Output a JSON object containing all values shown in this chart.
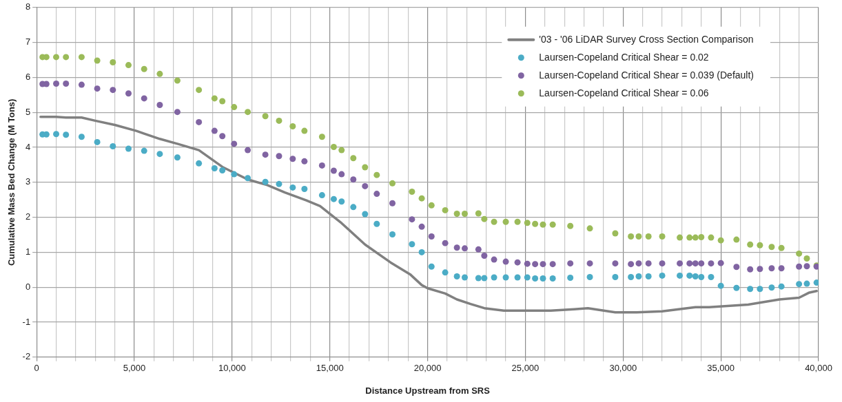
{
  "chart_data": {
    "type": "scatter",
    "xlabel": "Distance Upstream from SRS",
    "ylabel": "Cumulative Mass Bed Change (M Tons)",
    "x": [
      300,
      500,
      1000,
      1500,
      2300,
      3100,
      3900,
      4700,
      5500,
      6300,
      7200,
      8300,
      9100,
      9500,
      10100,
      10800,
      11700,
      12400,
      13100,
      13700,
      14600,
      15200,
      15600,
      16200,
      16800,
      17400,
      18200,
      19200,
      19700,
      20200,
      20900,
      21500,
      21900,
      22600,
      22900,
      23400,
      24000,
      24600,
      25100,
      25500,
      25900,
      26400,
      27300,
      28300,
      29600,
      30400,
      30800,
      31300,
      32000,
      32900,
      33400,
      33700,
      34000,
      34500,
      35000,
      35800,
      36500,
      37000,
      37600,
      38100,
      39000,
      39400,
      39900
    ],
    "series": [
      {
        "name": "'03 - '06 LiDAR Survey Cross Section Comparison",
        "type": "line",
        "marker": "none",
        "line_style": "solid",
        "color": "#808080",
        "x": [
          200,
          1000,
          1500,
          2300,
          3000,
          4000,
          5100,
          5500,
          6300,
          7200,
          8300,
          9500,
          10800,
          11800,
          12700,
          13800,
          14500,
          15600,
          16800,
          18100,
          19100,
          19700,
          20000,
          20900,
          21500,
          22200,
          22900,
          23900,
          25100,
          26300,
          27500,
          28200,
          29600,
          30700,
          32000,
          33700,
          34400,
          36400,
          38000,
          39000,
          39500,
          39900
        ],
        "values": [
          4.87,
          4.87,
          4.85,
          4.85,
          4.76,
          4.64,
          4.47,
          4.39,
          4.24,
          4.1,
          3.92,
          3.44,
          3.08,
          2.92,
          2.71,
          2.48,
          2.32,
          1.83,
          1.22,
          0.71,
          0.37,
          0.06,
          -0.03,
          -0.18,
          -0.35,
          -0.48,
          -0.6,
          -0.67,
          -0.67,
          -0.67,
          -0.63,
          -0.6,
          -0.72,
          -0.72,
          -0.69,
          -0.57,
          -0.57,
          -0.5,
          -0.35,
          -0.3,
          -0.16,
          -0.11
        ]
      },
      {
        "name": "Laursen-Copeland Critical Shear = 0.02",
        "type": "scatter",
        "marker": "circle",
        "color": "#4bacc6",
        "values": [
          4.37,
          4.37,
          4.38,
          4.36,
          4.3,
          4.15,
          4.03,
          3.96,
          3.9,
          3.81,
          3.71,
          3.54,
          3.4,
          3.34,
          3.23,
          3.12,
          3.01,
          2.95,
          2.85,
          2.81,
          2.63,
          2.52,
          2.45,
          2.29,
          2.09,
          1.81,
          1.51,
          1.23,
          1.0,
          0.59,
          0.42,
          0.31,
          0.28,
          0.26,
          0.26,
          0.28,
          0.28,
          0.28,
          0.28,
          0.25,
          0.25,
          0.25,
          0.27,
          0.29,
          0.29,
          0.29,
          0.31,
          0.31,
          0.33,
          0.33,
          0.33,
          0.31,
          0.29,
          0.29,
          0.04,
          -0.02,
          -0.05,
          -0.05,
          -0.01,
          0.02,
          0.09,
          0.1,
          0.13
        ]
      },
      {
        "name": "Laursen-Copeland Critical Shear = 0.039 (Default)",
        "type": "scatter",
        "marker": "circle",
        "color": "#8064a2",
        "values": [
          5.81,
          5.81,
          5.82,
          5.82,
          5.79,
          5.68,
          5.64,
          5.54,
          5.4,
          5.21,
          5.01,
          4.72,
          4.47,
          4.32,
          4.1,
          3.92,
          3.79,
          3.75,
          3.67,
          3.6,
          3.48,
          3.33,
          3.23,
          3.08,
          2.89,
          2.67,
          2.4,
          1.94,
          1.73,
          1.45,
          1.26,
          1.13,
          1.11,
          1.08,
          0.9,
          0.79,
          0.73,
          0.71,
          0.67,
          0.66,
          0.66,
          0.66,
          0.68,
          0.68,
          0.68,
          0.66,
          0.68,
          0.68,
          0.68,
          0.68,
          0.68,
          0.68,
          0.68,
          0.68,
          0.69,
          0.58,
          0.51,
          0.52,
          0.54,
          0.54,
          0.59,
          0.6,
          0.59
        ]
      },
      {
        "name": "Laursen-Copeland Critical Shear = 0.06",
        "type": "scatter",
        "marker": "circle",
        "color": "#9bbb59",
        "values": [
          6.58,
          6.58,
          6.58,
          6.58,
          6.58,
          6.48,
          6.43,
          6.35,
          6.24,
          6.1,
          5.91,
          5.64,
          5.4,
          5.32,
          5.15,
          5.01,
          4.89,
          4.76,
          4.6,
          4.47,
          4.3,
          4.01,
          3.92,
          3.69,
          3.43,
          3.21,
          2.97,
          2.73,
          2.54,
          2.34,
          2.2,
          2.1,
          2.1,
          2.11,
          1.95,
          1.87,
          1.87,
          1.87,
          1.84,
          1.81,
          1.79,
          1.79,
          1.75,
          1.68,
          1.54,
          1.45,
          1.45,
          1.45,
          1.45,
          1.42,
          1.42,
          1.42,
          1.43,
          1.42,
          1.34,
          1.36,
          1.22,
          1.2,
          1.15,
          1.12,
          0.96,
          0.82,
          0.62
        ]
      }
    ],
    "xlim": [
      0,
      40000
    ],
    "xticks": [
      0,
      {
        "value": 1000,
        "label": null
      },
      {
        "value": 2000,
        "label": null
      },
      {
        "value": 3000,
        "label": null
      },
      {
        "value": 4000,
        "label": null
      },
      {
        "value": 5000,
        "label": "5,000"
      },
      {
        "value": 6000,
        "label": null
      },
      {
        "value": 7000,
        "label": null
      },
      {
        "value": 8000,
        "label": null
      },
      {
        "value": 9000,
        "label": null
      },
      {
        "value": 10000,
        "label": "10,000"
      },
      {
        "value": 11000,
        "label": null
      },
      {
        "value": 12000,
        "label": null
      },
      {
        "value": 13000,
        "label": null
      },
      {
        "value": 14000,
        "label": null
      },
      {
        "value": 15000,
        "label": "15,000"
      },
      {
        "value": 16000,
        "label": null
      },
      {
        "value": 17000,
        "label": null
      },
      {
        "value": 18000,
        "label": null
      },
      {
        "value": 19000,
        "label": null
      },
      {
        "value": 20000,
        "label": "20,000"
      },
      {
        "value": 21000,
        "label": null
      },
      {
        "value": 22000,
        "label": null
      },
      {
        "value": 23000,
        "label": null
      },
      {
        "value": 24000,
        "label": null
      },
      {
        "value": 25000,
        "label": "25,000"
      },
      {
        "value": 26000,
        "label": null
      },
      {
        "value": 27000,
        "label": null
      },
      {
        "value": 28000,
        "label": null
      },
      {
        "value": 29000,
        "label": null
      },
      {
        "value": 30000,
        "label": "30,000"
      },
      {
        "value": 31000,
        "label": null
      },
      {
        "value": 32000,
        "label": null
      },
      {
        "value": 33000,
        "label": null
      },
      {
        "value": 34000,
        "label": null
      },
      {
        "value": 35000,
        "label": "35,000"
      },
      {
        "value": 36000,
        "label": null
      },
      {
        "value": 37000,
        "label": null
      },
      {
        "value": 38000,
        "label": null
      },
      {
        "value": 39000,
        "label": null
      },
      {
        "value": 40000,
        "label": "40,000"
      }
    ],
    "ylim": [
      -2,
      8
    ],
    "yticks": [
      -2,
      -1,
      0,
      1,
      2,
      3,
      4,
      5,
      6,
      7,
      8
    ],
    "grid": true,
    "legend": "top right"
  }
}
